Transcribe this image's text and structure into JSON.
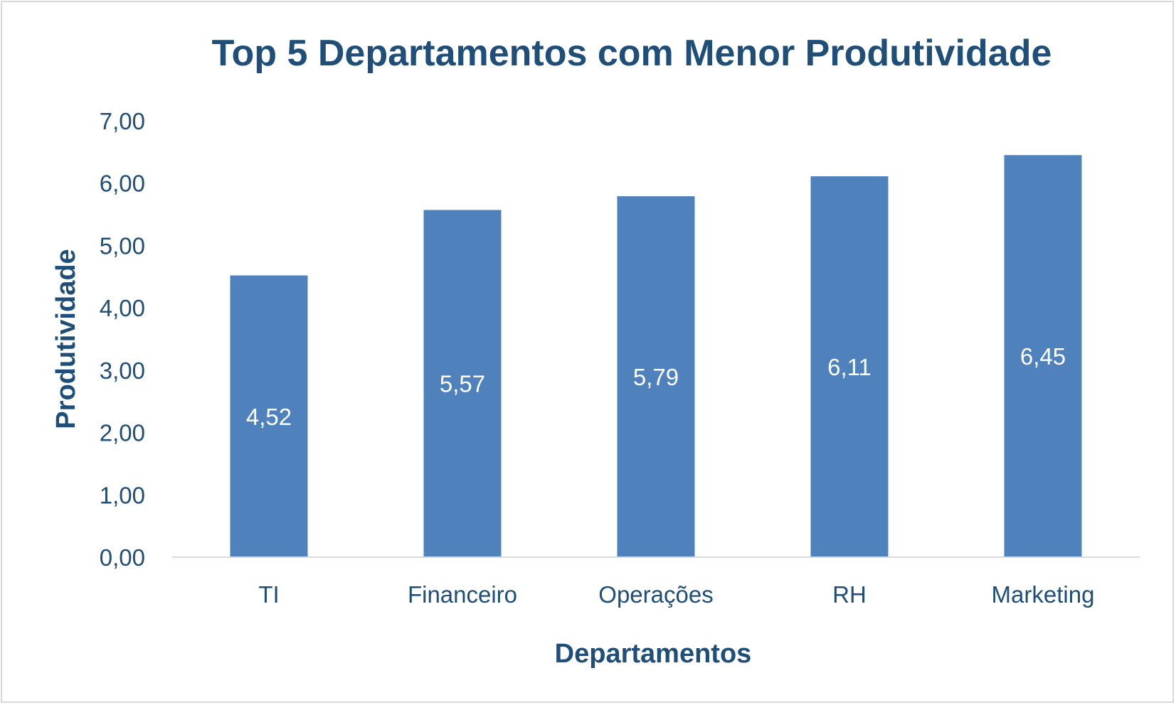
{
  "chart_data": {
    "type": "bar",
    "title": "Top 5 Departamentos com Menor Produtividade",
    "xlabel": "Departamentos",
    "ylabel": "Produtividade",
    "categories": [
      "TI",
      "Financeiro",
      "Operações",
      "RH",
      "Marketing"
    ],
    "values": [
      4.52,
      5.57,
      5.79,
      6.11,
      6.45
    ],
    "data_labels": [
      "4,52",
      "5,57",
      "5,79",
      "6,11",
      "6,45"
    ],
    "ylim": [
      0,
      7
    ],
    "yticks": [
      "0,00",
      "1,00",
      "2,00",
      "3,00",
      "4,00",
      "5,00",
      "6,00",
      "7,00"
    ],
    "grid": false,
    "legend": "none",
    "bar_color": "#4f81bd",
    "text_color": "#1f4e79"
  }
}
